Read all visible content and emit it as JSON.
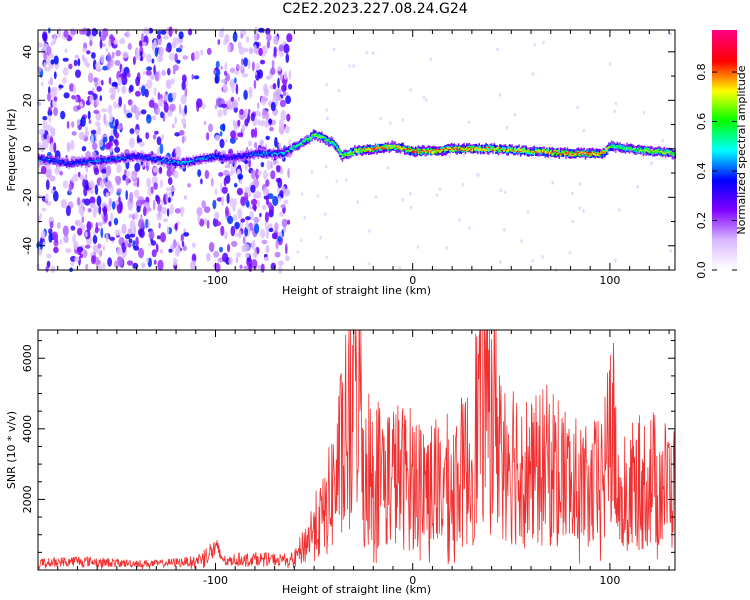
{
  "title": "C2E2.2023.227.08.24.G24",
  "chart_data": [
    {
      "type": "heatmap",
      "xlabel": "Height of straight line (km)",
      "ylabel": "Frequency (Hz)",
      "xlim": [
        -190,
        133
      ],
      "ylim": [
        -50,
        49
      ],
      "x_ticks": [
        -100,
        0,
        100
      ],
      "y_ticks": [
        -40,
        -20,
        0,
        20,
        40
      ],
      "colorbar": {
        "label": "Normalized spectral amplitude",
        "range": [
          0.0,
          0.97
        ],
        "ticks": [
          "0.0",
          "0.2",
          "0.4",
          "0.6",
          "0.8"
        ],
        "colors": [
          "#ffffff",
          "#d9b8ff",
          "#7f00ff",
          "#0000ff",
          "#00ffff",
          "#00ff00",
          "#ffff00",
          "#ff0000",
          "#ff0080"
        ]
      },
      "ridge": {
        "x": [
          -190,
          -175,
          -160,
          -140,
          -118,
          -100,
          -94,
          -80,
          -66,
          -62,
          -55,
          -50,
          -45,
          -40,
          -36,
          -30,
          -20,
          -10,
          0,
          10,
          20,
          40,
          60,
          80,
          96,
          100,
          110,
          120,
          133
        ],
        "freq": [
          -4,
          -6,
          -5,
          -3,
          -6,
          -3,
          -4,
          -2,
          -2,
          0,
          3,
          6,
          4,
          2,
          -3,
          -1,
          0,
          1,
          -1,
          -1,
          0,
          0,
          -1,
          -2,
          -2,
          1,
          0,
          -1,
          -2
        ],
        "amplitude": [
          0.35,
          0.3,
          0.35,
          0.3,
          0.4,
          0.35,
          0.25,
          0.35,
          0.4,
          0.5,
          0.55,
          0.6,
          0.55,
          0.5,
          0.6,
          0.65,
          0.85,
          0.7,
          0.8,
          0.75,
          0.8,
          0.7,
          0.7,
          0.8,
          0.8,
          0.55,
          0.55,
          0.65,
          0.6
        ]
      },
      "noise_region": [
        -190,
        -62
      ]
    },
    {
      "type": "line",
      "xlabel": "Height of straight line (km)",
      "ylabel": "SNR (10 * v/v)",
      "xlim": [
        -190,
        133
      ],
      "ylim": [
        0,
        6800
      ],
      "x_ticks": [
        -100,
        0,
        100
      ],
      "y_ticks": [
        2000,
        4000,
        6000
      ],
      "color": "#f03030",
      "series": [
        {
          "x": [
            -190,
            -170,
            -150,
            -130,
            -110,
            -100,
            -95,
            -90,
            -80,
            -70,
            -60,
            -55,
            -50,
            -45,
            -40,
            -35,
            -30,
            -28,
            -25,
            -20,
            -10,
            0,
            10,
            20,
            30,
            35,
            40,
            45,
            50,
            60,
            70,
            80,
            90,
            98,
            100,
            105,
            110,
            120,
            133
          ],
          "values": [
            200,
            260,
            200,
            180,
            250,
            600,
            250,
            300,
            320,
            300,
            300,
            700,
            1200,
            1500,
            2400,
            3500,
            4800,
            6800,
            3200,
            2800,
            2700,
            2600,
            2400,
            2500,
            3000,
            5400,
            4800,
            3800,
            3300,
            2700,
            3000,
            2500,
            2200,
            2800,
            4500,
            2000,
            2300,
            2600,
            2300
          ]
        }
      ]
    }
  ]
}
